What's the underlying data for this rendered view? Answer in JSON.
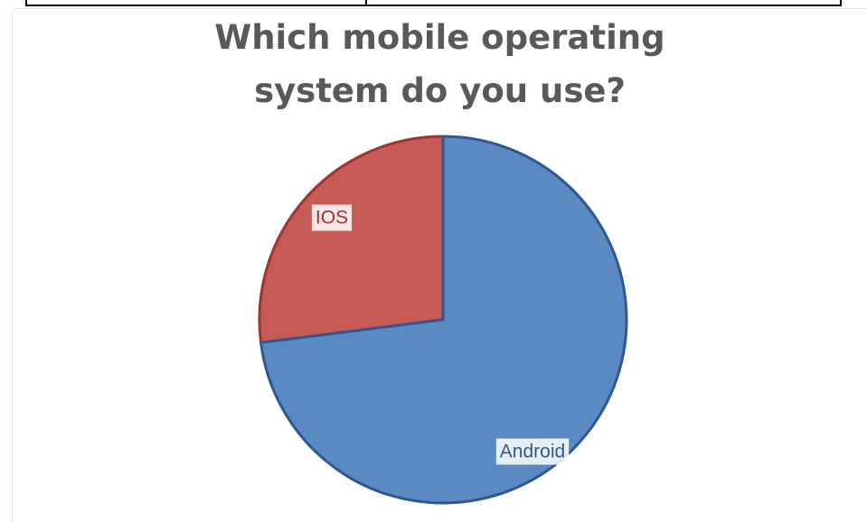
{
  "colors": {
    "ios_fill": "#c55a57",
    "ios_stroke": "#a0342f",
    "android_fill": "#5b8ac3",
    "android_stroke": "#2e5890",
    "title": "#595959"
  },
  "chart_data": {
    "type": "pie",
    "title": "Which mobile operating system do you use?",
    "categories": [
      "IOS",
      "Android"
    ],
    "values": [
      27,
      73
    ],
    "unit": "percent",
    "legend": "none",
    "data_labels": [
      "IOS",
      "Android"
    ]
  }
}
